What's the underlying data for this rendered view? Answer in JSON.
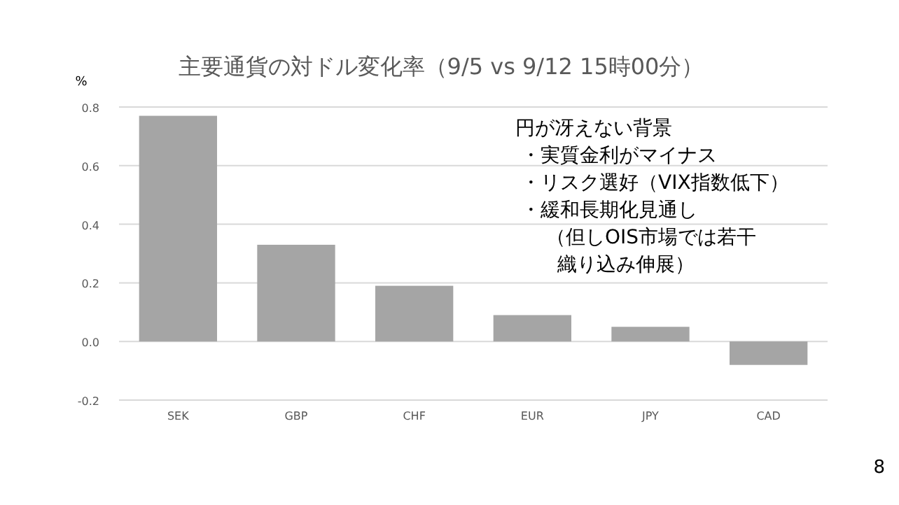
{
  "chart_data": {
    "type": "bar",
    "title": "主要通貨の対ドル変化率（9/5 vs 9/12 15時00分）",
    "ylabel": "%",
    "categories": [
      "SEK",
      "GBP",
      "CHF",
      "EUR",
      "JPY",
      "CAD"
    ],
    "values": [
      0.77,
      0.33,
      0.19,
      0.09,
      0.05,
      -0.08
    ],
    "color": "#a5a5a5",
    "ylim": [
      -0.2,
      0.8
    ],
    "yticks": [
      -0.2,
      {
        "value": 0,
        "label": "0.0"
      },
      0.2,
      0.4,
      0.6,
      0.8
    ],
    "grid": "y",
    "annotations": [
      "円が冴えない背景",
      "・実質金利がマイナス",
      "・リスク選好（VIX指数低下）",
      "・緩和長期化見通し",
      "（但しOIS市場では若干",
      "織り込み伸展）",
      "8"
    ]
  }
}
